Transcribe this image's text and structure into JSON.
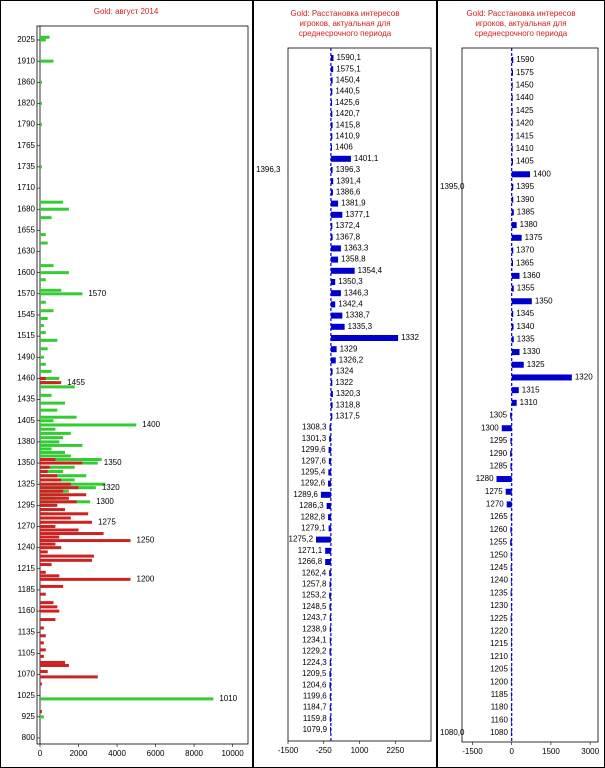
{
  "chart_data": [
    {
      "type": "hbar-profile",
      "title": "Gold: август 2014",
      "y": [
        2040,
        2025,
        1910,
        1860,
        1820,
        1790,
        1735,
        1690,
        1680,
        1670,
        1650,
        1640,
        1610,
        1600,
        1590,
        1575,
        1570,
        1560,
        1550,
        1540,
        1530,
        1520,
        1510,
        1500,
        1490,
        1480,
        1470,
        1460,
        1455,
        1450,
        1440,
        1430,
        1420,
        1410,
        1405,
        1400,
        1395,
        1390,
        1385,
        1380,
        1375,
        1370,
        1365,
        1360,
        1355,
        1350,
        1345,
        1340,
        1335,
        1330,
        1325,
        1320,
        1315,
        1310,
        1305,
        1300,
        1295,
        1290,
        1285,
        1280,
        1275,
        1270,
        1265,
        1260,
        1255,
        1250,
        1245,
        1240,
        1235,
        1230,
        1225,
        1220,
        1210,
        1205,
        1200,
        1190,
        1180,
        1170,
        1165,
        1160,
        1150,
        1140,
        1130,
        1120,
        1110,
        1100,
        1090,
        1085,
        1075,
        1065,
        1050,
        1010,
        950,
        925
      ],
      "series": [
        {
          "name": "green",
          "color": "#33cc33",
          "values": [
            500,
            300,
            700,
            100,
            100,
            100,
            100,
            1200,
            1500,
            600,
            300,
            400,
            700,
            1500,
            300,
            1100,
            2200,
            300,
            700,
            400,
            200,
            300,
            900,
            400,
            200,
            300,
            600,
            1000,
            800,
            1800,
            600,
            1300,
            900,
            1900,
            700,
            5000,
            800,
            1600,
            1200,
            1000,
            2200,
            600,
            1300,
            1600,
            3200,
            3000,
            1800,
            1200,
            2400,
            1800,
            3400,
            2900,
            1500,
            1000,
            800,
            2600,
            700,
            500,
            400,
            200,
            300,
            200,
            100,
            100,
            200,
            500,
            0,
            0,
            0,
            0,
            0,
            0,
            0,
            0,
            0,
            0,
            0,
            0,
            0,
            0,
            0,
            0,
            0,
            0,
            0,
            0,
            0,
            0,
            0,
            0,
            0,
            9000,
            100,
            200
          ]
        },
        {
          "name": "red",
          "color": "#cc2222",
          "values": [
            0,
            0,
            0,
            0,
            0,
            0,
            0,
            0,
            0,
            0,
            0,
            0,
            0,
            0,
            0,
            0,
            0,
            0,
            0,
            0,
            0,
            0,
            0,
            0,
            0,
            0,
            0,
            300,
            1100,
            0,
            0,
            0,
            0,
            0,
            0,
            0,
            0,
            0,
            0,
            0,
            0,
            0,
            0,
            0,
            800,
            2200,
            500,
            400,
            900,
            1100,
            1600,
            2000,
            1200,
            2400,
            1500,
            1900,
            900,
            1300,
            2500,
            1600,
            2700,
            800,
            2000,
            3300,
            1000,
            4700,
            800,
            1100,
            400,
            2800,
            2700,
            600,
            300,
            1000,
            4700,
            1200,
            300,
            700,
            900,
            1000,
            800,
            200,
            300,
            200,
            300,
            200,
            1300,
            1500,
            400,
            3000,
            100,
            0,
            100,
            0
          ]
        }
      ],
      "xlim": [
        0,
        10800
      ],
      "xticks": [
        0,
        2000,
        4000,
        6000,
        8000,
        10000
      ],
      "yticks": [
        2025,
        1910,
        1860,
        1820,
        1790,
        1765,
        1735,
        1710,
        1680,
        1655,
        1630,
        1600,
        1570,
        1545,
        1515,
        1490,
        1460,
        1435,
        1405,
        1380,
        1350,
        1325,
        1295,
        1270,
        1240,
        1215,
        1185,
        1160,
        1135,
        1105,
        1070,
        1025,
        925,
        800
      ],
      "annotations": [
        {
          "label": "1570",
          "y": 1570
        },
        {
          "label": "1455",
          "y": 1455
        },
        {
          "label": "1400",
          "y": 1400
        },
        {
          "label": "1350",
          "y": 1350
        },
        {
          "label": "1320",
          "y": 1320
        },
        {
          "label": "1300",
          "y": 1300
        },
        {
          "label": "1275",
          "y": 1275
        },
        {
          "label": "1250",
          "y": 1250
        },
        {
          "label": "1200",
          "y": 1200
        },
        {
          "label": "1010",
          "y": 1010
        }
      ]
    },
    {
      "type": "hbar-levels",
      "title_lines": [
        "Gold: Расстановка интересов",
        "игроков, актуальная  для",
        "среднесрочного периода"
      ],
      "categories": [
        "1590,1",
        "1575,1",
        "1450,4",
        "1440,5",
        "1425,6",
        "1420,7",
        "1415,8",
        "1410,9",
        "1406",
        "1401,1",
        "1396,3",
        "1391,4",
        "1386,6",
        "1381,9",
        "1377,1",
        "1372,4",
        "1367,8",
        "1363,3",
        "1358,8",
        "1354,4",
        "1350,3",
        "1346,3",
        "1342,4",
        "1338,7",
        "1335,3",
        "1332",
        "1329",
        "1326,2",
        "1324",
        "1322",
        "1320,3",
        "1318,8",
        "1317,5",
        "1308,3",
        "1301,3",
        "1299,6",
        "1297,6",
        "1295,4",
        "1292,6",
        "1289,6",
        "1286,3",
        "1282,8",
        "1279,1",
        "1275,2",
        "1271,1",
        "1266,8",
        "1262,4",
        "1257,8",
        "1253,2",
        "1248,5",
        "1243,7",
        "1238,9",
        "1234,1",
        "1229,2",
        "1224,3",
        "1209,5",
        "1204,6",
        "1199,6",
        "1184,7",
        "1159,8",
        "1079,9"
      ],
      "values": [
        90,
        80,
        60,
        50,
        40,
        50,
        60,
        50,
        40,
        700,
        60,
        80,
        70,
        250,
        400,
        50,
        60,
        350,
        250,
        830,
        150,
        350,
        150,
        400,
        480,
        2350,
        200,
        170,
        60,
        50,
        70,
        60,
        50,
        -50,
        -60,
        -80,
        -70,
        -90,
        -100,
        -350,
        -150,
        -100,
        -80,
        -520,
        -200,
        -200,
        -60,
        -50,
        -60,
        -50,
        -40,
        -40,
        -40,
        -50,
        -40,
        -50,
        -50,
        -40,
        -40,
        -40,
        -30
      ],
      "color": "#0000cc",
      "xlim": [
        -1500,
        3500
      ],
      "xticks": [
        -1500,
        -250,
        1000,
        2250
      ],
      "side_labels": [
        {
          "label": "1396,3",
          "value": 1396.3
        }
      ]
    },
    {
      "type": "hbar-levels",
      "title_lines": [
        "Gold: Расстановка интересов",
        "игроков, актуальная  для",
        "среднесрочного периода"
      ],
      "categories": [
        "1590",
        "1575",
        "1450",
        "1440",
        "1425",
        "1420",
        "1415",
        "1410",
        "1405",
        "1400",
        "1395",
        "1390",
        "1385",
        "1380",
        "1375",
        "1370",
        "1365",
        "1360",
        "1355",
        "1350",
        "1345",
        "1340",
        "1335",
        "1330",
        "1325",
        "1320",
        "1315",
        "1310",
        "1305",
        "1300",
        "1295",
        "1290",
        "1285",
        "1280",
        "1275",
        "1270",
        "1265",
        "1260",
        "1255",
        "1250",
        "1245",
        "1240",
        "1235",
        "1230",
        "1225",
        "1220",
        "1215",
        "1210",
        "1205",
        "1200",
        "1185",
        "1180",
        "1160",
        "1080"
      ],
      "values": [
        60,
        50,
        40,
        40,
        40,
        40,
        40,
        40,
        50,
        700,
        60,
        60,
        80,
        190,
        380,
        60,
        50,
        300,
        80,
        770,
        60,
        70,
        80,
        300,
        460,
        2300,
        270,
        190,
        -60,
        -380,
        -50,
        -60,
        -50,
        -580,
        -230,
        -190,
        -40,
        -50,
        -60,
        -40,
        -40,
        -30,
        -40,
        -30,
        -40,
        -30,
        -30,
        -30,
        -30,
        -30,
        -30,
        -30,
        -30,
        -30
      ],
      "color": "#0000cc",
      "xlim": [
        -1900,
        3300
      ],
      "xticks": [
        -1500,
        0,
        1500,
        3000
      ],
      "side_labels": [
        {
          "label": "1395,0",
          "value": 1395
        },
        {
          "label": "1080,0",
          "value": 1080
        }
      ]
    }
  ]
}
